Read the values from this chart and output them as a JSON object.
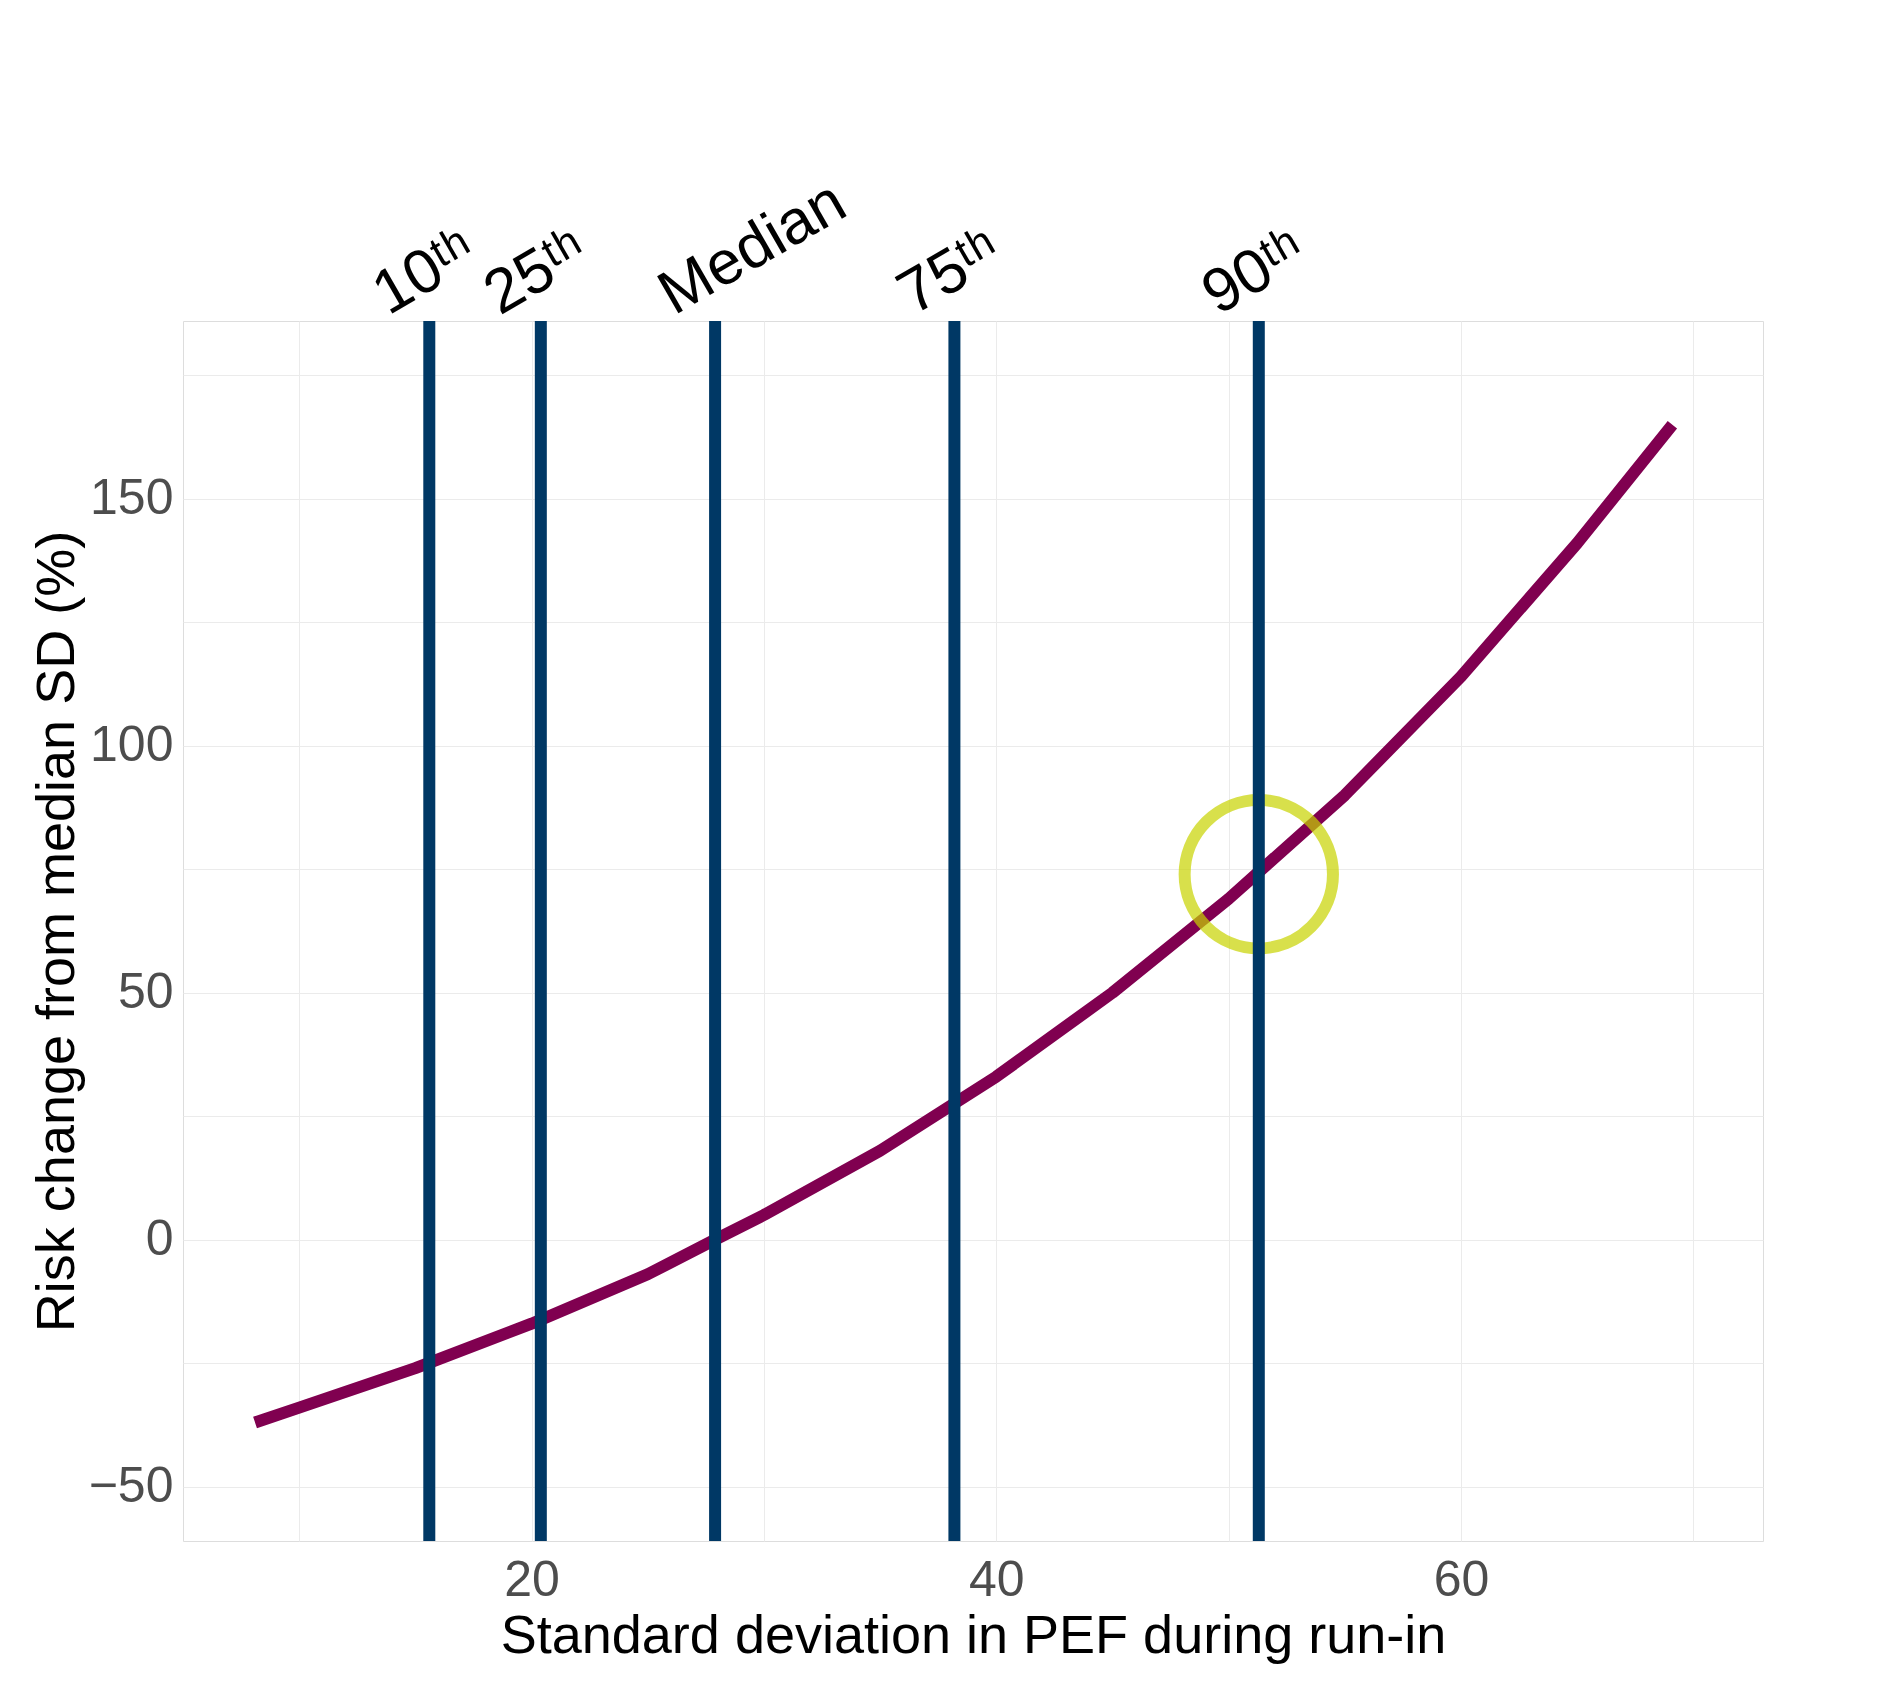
{
  "chart_data": {
    "type": "line",
    "xlabel": "Standard deviation in PEF during run-in",
    "ylabel": "Risk change from median SD (%)",
    "series": [
      {
        "color": "#800050",
        "x": [
          8.1,
          10,
          15,
          20,
          25,
          27.9,
          30,
          35,
          40,
          45,
          50,
          55,
          60,
          65,
          69.1
        ],
        "values": [
          -37,
          -34,
          -26,
          -17,
          -7,
          0,
          5,
          18,
          33,
          50,
          69,
          90,
          114,
          141,
          165
        ]
      },
      {
        "type": "scatter",
        "marker": "circle",
        "color": "#c8d400",
        "x": [
          51.3
        ],
        "values": [
          74
        ]
      }
    ],
    "ref_lines": [
      {
        "axis": "x",
        "value": 15.6,
        "label": "10ᵗʰ",
        "color": "#003865"
      },
      {
        "axis": "x",
        "value": 20.4,
        "label": "25ᵗʰ",
        "color": "#003865"
      },
      {
        "axis": "x",
        "value": 27.9,
        "label": "Median",
        "color": "#003865"
      },
      {
        "axis": "x",
        "value": 38.2,
        "label": "75ᵗʰ",
        "color": "#003865"
      },
      {
        "axis": "x",
        "value": 51.3,
        "label": "90ᵗʰ",
        "color": "#003865"
      }
    ],
    "xlim": [
      5,
      73
    ],
    "ylim": [
      -61,
      186
    ],
    "xticks": [
      {
        "value": 10,
        "label": null
      },
      20,
      {
        "value": 30,
        "label": null
      },
      40,
      {
        "value": 50,
        "label": null
      },
      60,
      {
        "value": 70,
        "label": null
      }
    ],
    "yticks": [
      -50,
      {
        "value": -25,
        "label": null
      },
      0,
      {
        "value": 25,
        "label": null
      },
      50,
      {
        "value": 75,
        "label": null
      },
      100,
      {
        "value": 125,
        "label": null
      },
      150,
      {
        "value": 175,
        "label": null
      }
    ],
    "grid": true,
    "line_style": "solid"
  }
}
